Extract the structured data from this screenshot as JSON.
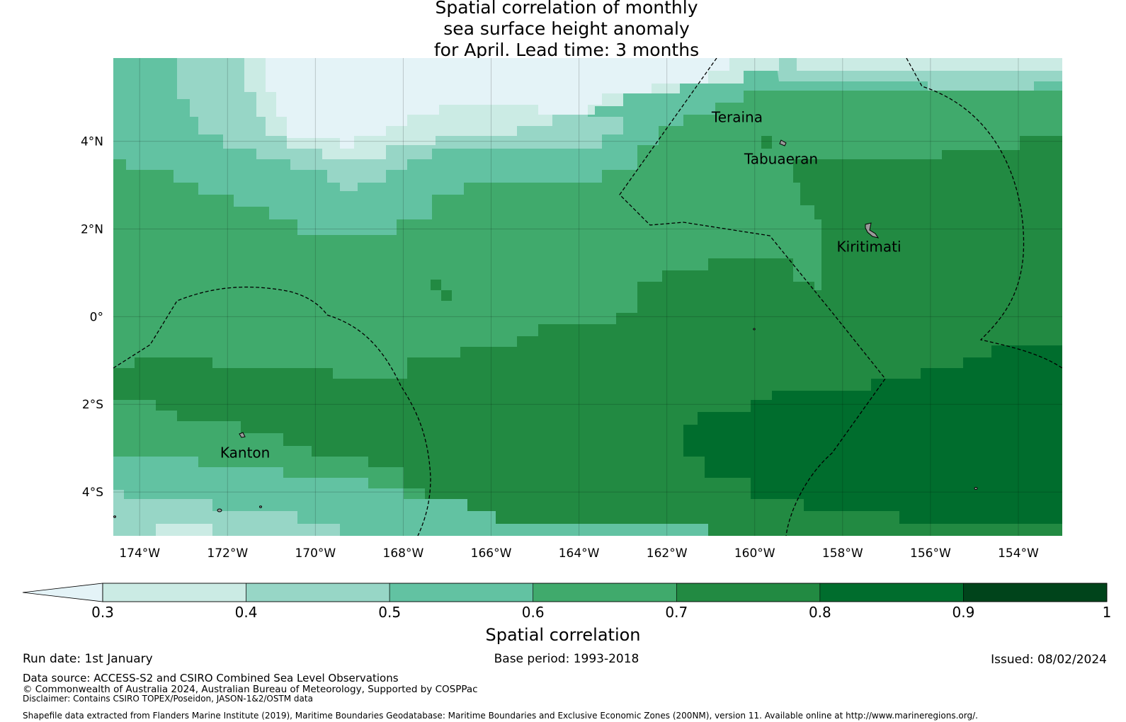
{
  "title": {
    "line1": "Spatial correlation of monthly",
    "line2": "sea surface height anomaly",
    "line3": "for April. Lead time: 3 months"
  },
  "map": {
    "lat_range": [
      -5.0,
      5.9
    ],
    "lon_range": [
      -174.6,
      -153.0
    ],
    "lat_ticks": [
      {
        "v": 4,
        "label": "4°N"
      },
      {
        "v": 2,
        "label": "2°N"
      },
      {
        "v": 0,
        "label": "0°"
      },
      {
        "v": -2,
        "label": "2°S"
      },
      {
        "v": -4,
        "label": "4°S"
      }
    ],
    "lon_ticks": [
      {
        "v": -174,
        "label": "174°W"
      },
      {
        "v": -172,
        "label": "172°W"
      },
      {
        "v": -170,
        "label": "170°W"
      },
      {
        "v": -168,
        "label": "168°W"
      },
      {
        "v": -166,
        "label": "166°W"
      },
      {
        "v": -164,
        "label": "164°W"
      },
      {
        "v": -162,
        "label": "162°W"
      },
      {
        "v": -160,
        "label": "160°W"
      },
      {
        "v": -158,
        "label": "158°W"
      },
      {
        "v": -156,
        "label": "156°W"
      },
      {
        "v": -154,
        "label": "154°W"
      }
    ],
    "places": [
      {
        "name": "Teraina",
        "lon": -160.4,
        "lat": 4.55
      },
      {
        "name": "Tabuaeran",
        "lon": -159.4,
        "lat": 3.6
      },
      {
        "name": "Kiritimati",
        "lon": -157.4,
        "lat": 1.6
      },
      {
        "name": "Kanton",
        "lon": -171.6,
        "lat": -3.1
      }
    ]
  },
  "chart_data": {
    "type": "heatmap",
    "title": "Spatial correlation of monthly sea surface height anomaly for April. Lead time: 3 months",
    "variable": "Spatial correlation",
    "color_scale": {
      "bounds": [
        0.3,
        0.4,
        0.5,
        0.6,
        0.7,
        0.8,
        0.9,
        1
      ],
      "under_color": "#e4f3f7",
      "colors": [
        "#cbebe4",
        "#97d6c6",
        "#62c2a2",
        "#40aa6c",
        "#228a42",
        "#006d2d",
        "#00441b"
      ]
    },
    "regions": [
      {
        "correlation_band": "0.2-0.3",
        "description": "northern strip near 170°W-163°W, 4.5°N-5.9°N"
      },
      {
        "correlation_band": "0.3-0.5",
        "description": "north-west, 173°W-163°W, 2.5°N-5.9°N, and south-west corner near 4°S-5°S"
      },
      {
        "correlation_band": "0.5-0.6",
        "description": "west and north margins"
      },
      {
        "correlation_band": "0.6-0.7",
        "description": "central equatorial band and north-east near Teraina"
      },
      {
        "correlation_band": "0.7-0.8",
        "description": "south-central and east of Kiritimati, band along 1°S-2°S"
      },
      {
        "correlation_band": "0.8-0.9",
        "description": "south-east, 161°W-153°W, 1°S-5°S"
      }
    ]
  },
  "colorbar": {
    "ticks": [
      "0.3",
      "0.4",
      "0.5",
      "0.6",
      "0.7",
      "0.8",
      "0.9",
      "1"
    ],
    "label": "Spatial correlation"
  },
  "footer": {
    "run_date": "Run date: 1st January",
    "base_period": "Base period: 1993-2018",
    "issued": "Issued: 08/02/2024",
    "data_source": "Data source: ACCESS-S2 and CSIRO Combined Sea Level Observations",
    "copyright": "© Commonwealth of Australia 2024, Australian Bureau of Meteorology, Supported by COSPPac",
    "disclaimer": "Disclaimer: Contains CSIRO TOPEX/Poseidon, JASON-1&2/OSTM data",
    "shapefile": "Shapefile data extracted from Flanders Marine Institute (2019), Maritime Boundaries Geodatabase: Maritime Boundaries and Exclusive Economic Zones (200NM), version 11. Available online at http://www.marineregions.org/."
  }
}
